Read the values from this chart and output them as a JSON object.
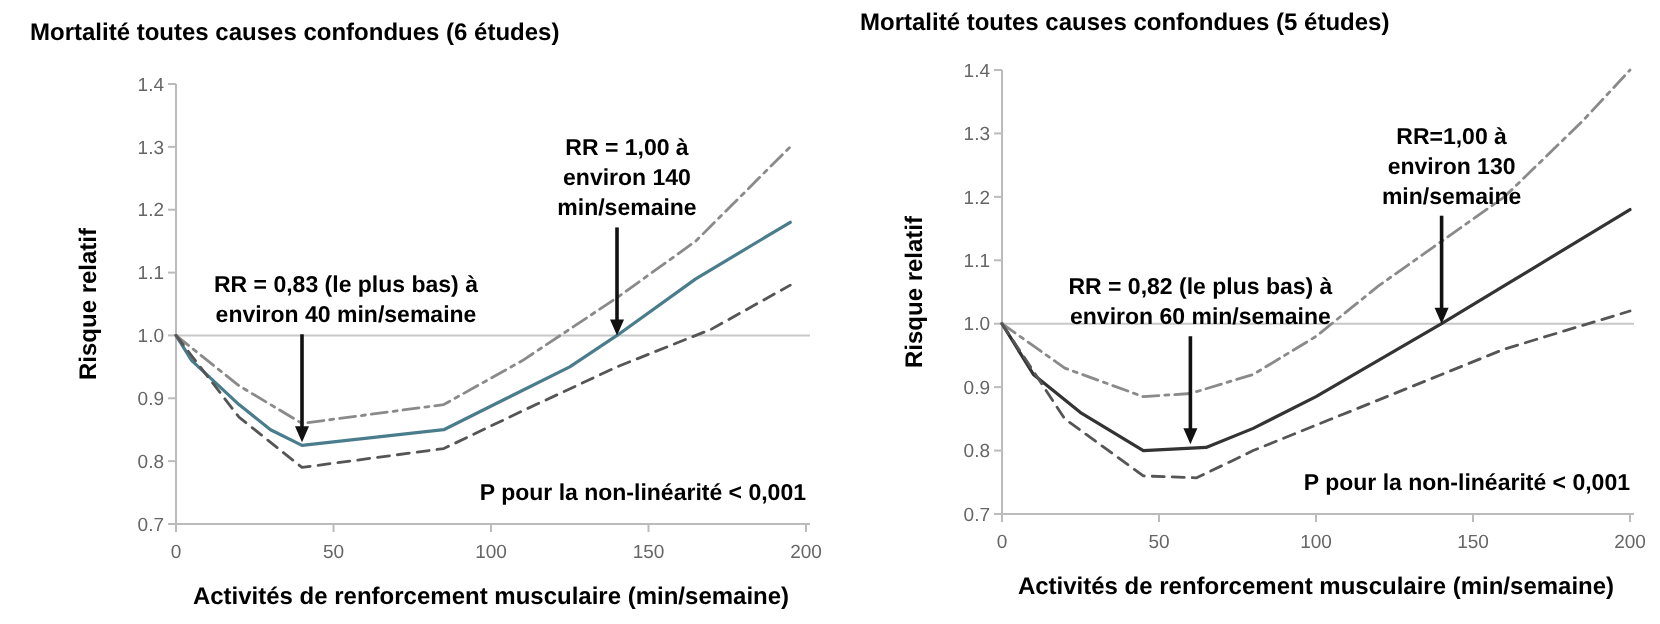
{
  "chart_data": [
    {
      "type": "line",
      "title": "Mortalité toutes causes confondues (6 études)",
      "xlabel": "Activités de renforcement musculaire (min/semaine)",
      "ylabel": "Risque relatif",
      "xlim": [
        0,
        200
      ],
      "xticks": [
        0,
        50,
        100,
        150,
        200
      ],
      "ylim": [
        0.7,
        1.4
      ],
      "yticks": [
        0.7,
        0.8,
        0.9,
        {
          "value": 1,
          "label": "1.0"
        },
        1.1,
        1.2,
        1.3,
        1.4
      ],
      "grid": false,
      "series": [
        {
          "color": "#4a7d8c",
          "line_style": "solid",
          "x": [
            0,
            5,
            20,
            30,
            40,
            85,
            105,
            125,
            140,
            165,
            195
          ],
          "values": [
            1.0,
            0.96,
            0.89,
            0.85,
            0.825,
            0.85,
            0.9,
            0.95,
            1.0,
            1.09,
            1.18
          ]
        },
        {
          "color": "#8a8a8a",
          "line_style": "dashdot",
          "x": [
            0,
            20,
            40,
            85,
            110,
            140,
            165,
            195
          ],
          "values": [
            1.0,
            0.92,
            0.86,
            0.89,
            0.96,
            1.06,
            1.15,
            1.3
          ]
        },
        {
          "color": "#555555",
          "line_style": "dashed",
          "x": [
            0,
            20,
            40,
            85,
            110,
            140,
            170,
            195
          ],
          "values": [
            1.0,
            0.87,
            0.79,
            0.82,
            0.88,
            0.95,
            1.01,
            1.08
          ]
        }
      ],
      "ref_lines": [
        {
          "axis": "y",
          "value": 1,
          "color": "#c8c8c8"
        }
      ],
      "annotations": [
        {
          "text": "RR = 0,83 (le plus bas) à\nenviron 40 min/semaine",
          "x": 40,
          "y": 0.83
        },
        {
          "text": "RR = 1,00 à\nenviron 140\nmin/semaine",
          "x": 140,
          "y": 1.0
        },
        "P pour la non-linéarité < 0,001"
      ]
    },
    {
      "type": "line",
      "title": "Mortalité toutes causes confondues (5 études)",
      "xlabel": "Activités de renforcement musculaire (min/semaine)",
      "ylabel": "Risque relatif",
      "xlim": [
        0,
        200
      ],
      "xticks": [
        0,
        50,
        100,
        150,
        200
      ],
      "ylim": [
        0.7,
        1.4
      ],
      "yticks": [
        0.7,
        0.8,
        0.9,
        {
          "value": 1,
          "label": "1.0"
        },
        1.1,
        1.2,
        1.3,
        1.4
      ],
      "grid": false,
      "series": [
        {
          "color": "#333333",
          "line_style": "solid",
          "x": [
            0,
            10,
            25,
            45,
            65,
            80,
            100,
            140,
            160,
            200
          ],
          "values": [
            1.0,
            0.92,
            0.86,
            0.8,
            0.805,
            0.835,
            0.885,
            1.0,
            1.06,
            1.18
          ]
        },
        {
          "color": "#8a8a8a",
          "line_style": "dashdot",
          "x": [
            0,
            20,
            45,
            60,
            80,
            100,
            120,
            140,
            160,
            185,
            200
          ],
          "values": [
            1.0,
            0.93,
            0.885,
            0.89,
            0.92,
            0.98,
            1.06,
            1.13,
            1.2,
            1.32,
            1.4
          ]
        },
        {
          "color": "#555555",
          "line_style": "dashed",
          "x": [
            0,
            20,
            45,
            62,
            80,
            100,
            140,
            160,
            200
          ],
          "values": [
            1.0,
            0.85,
            0.76,
            0.757,
            0.8,
            0.84,
            0.92,
            0.96,
            1.02
          ]
        }
      ],
      "ref_lines": [
        {
          "axis": "y",
          "value": 1,
          "color": "#c8c8c8"
        }
      ],
      "annotations": [
        {
          "text": "RR = 0,82 (le plus bas) à\nenviron 60 min/semaine",
          "x": 60,
          "y": 0.81
        },
        {
          "text": "RR=1,00 à\nenviron 130\nmin/semaine",
          "x": 140,
          "y": 1.0
        },
        "P pour la non-linéarité < 0,001"
      ]
    }
  ]
}
